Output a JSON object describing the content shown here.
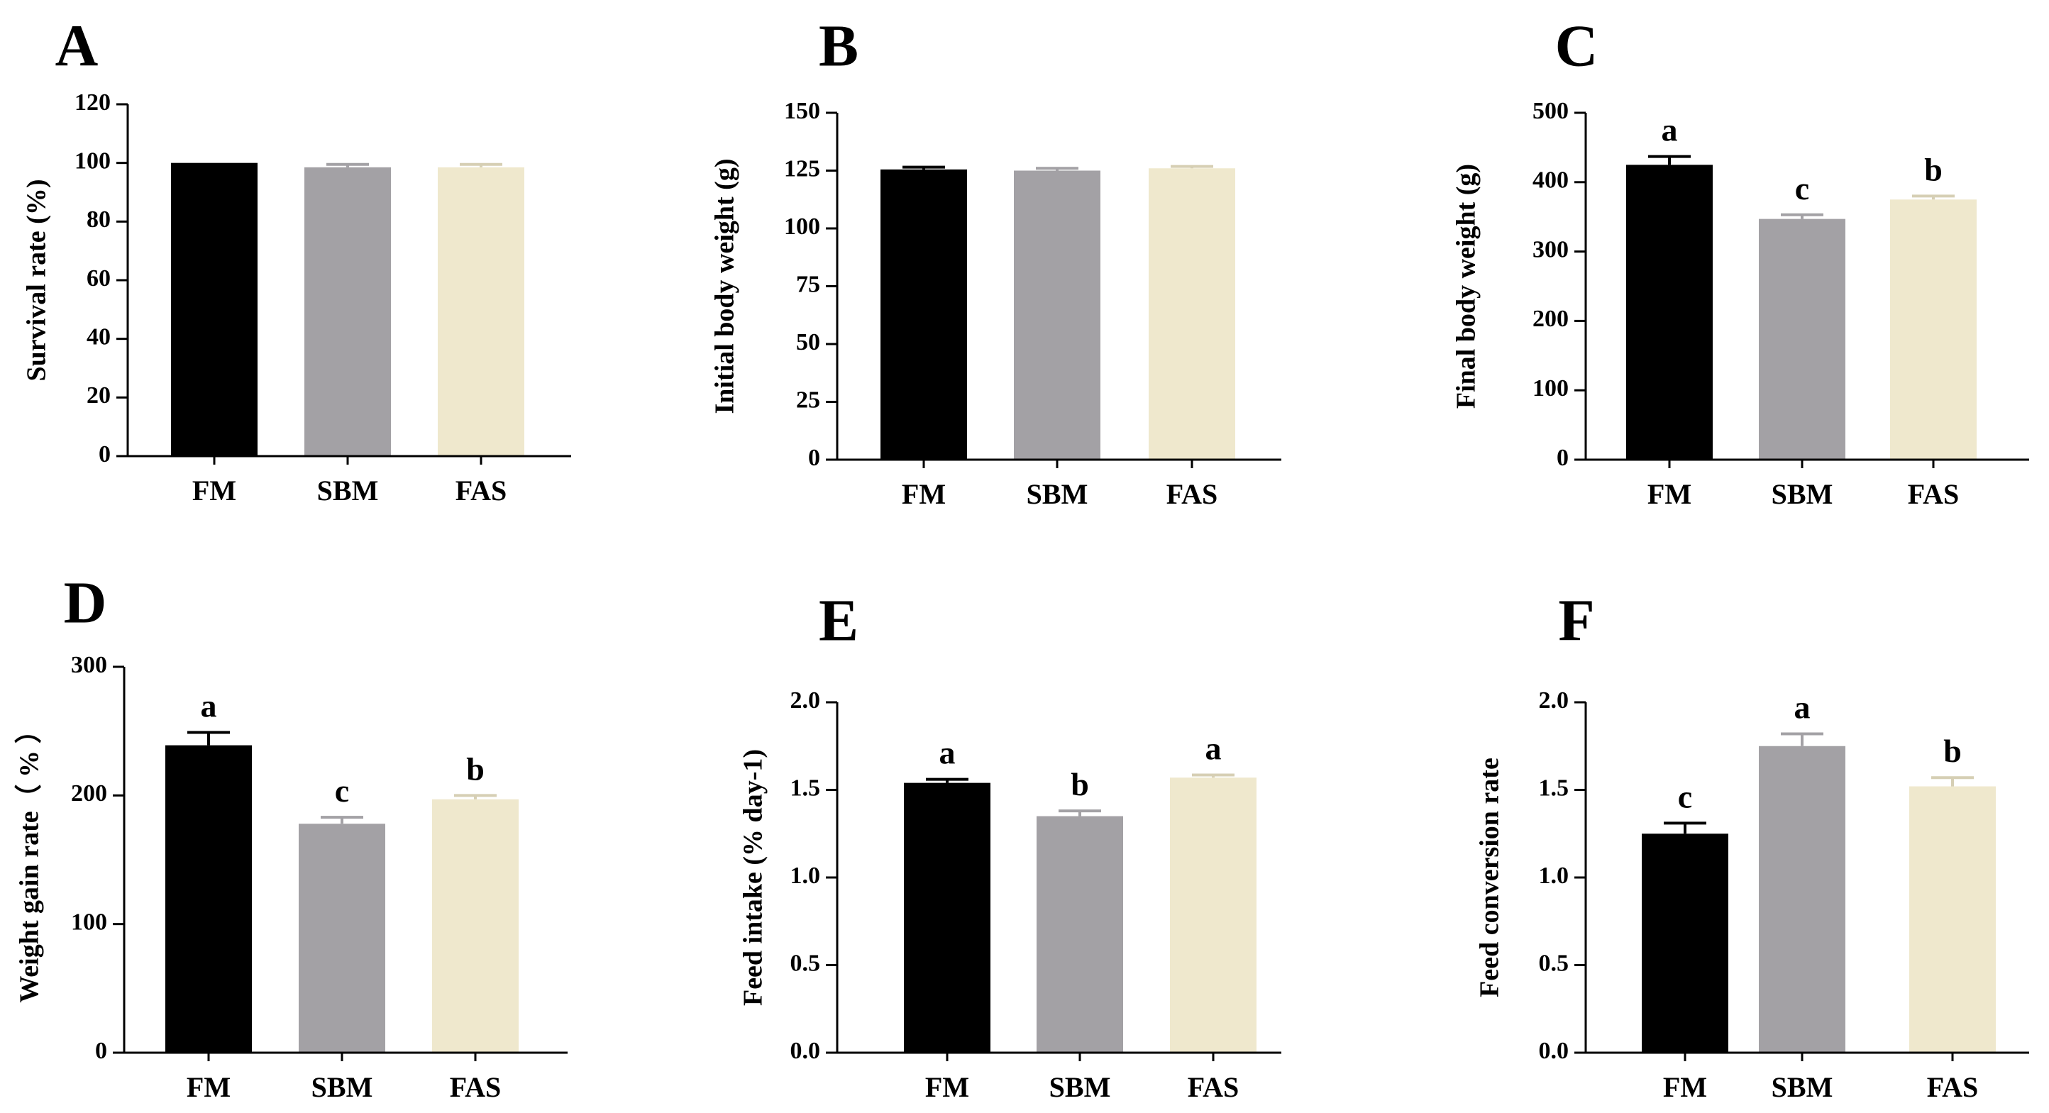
{
  "figure": {
    "colors": {
      "FM": "#000000",
      "SBM": "#a3a1a5",
      "FAS": "#efe8cd",
      "error_FM": "#000000",
      "error_SBM": "#a3a1a5",
      "error_FAS": "#d6cfb4",
      "axis": "#000000"
    }
  },
  "chart_data": [
    {
      "panel": "A",
      "type": "bar",
      "categories": [
        "FM",
        "SBM",
        "FAS"
      ],
      "values": [
        100,
        98.5,
        98.5
      ],
      "errors": [
        0,
        1,
        1
      ],
      "significance": [
        "",
        "",
        ""
      ],
      "ylabel": "Survival rate (%)",
      "ylim": [
        0,
        120
      ],
      "yticks": [
        "0",
        "20",
        "40",
        "60",
        "80",
        "100",
        "120"
      ]
    },
    {
      "panel": "B",
      "type": "bar",
      "categories": [
        "FM",
        "SBM",
        "FAS"
      ],
      "values": [
        125.5,
        125,
        126
      ],
      "errors": [
        1,
        1,
        0.8
      ],
      "significance": [
        "",
        "",
        ""
      ],
      "ylabel": "Initial body weight (g)",
      "ylim": [
        0,
        150
      ],
      "yticks": [
        "0",
        "25",
        "50",
        "75",
        "100",
        "125",
        "150"
      ]
    },
    {
      "panel": "C",
      "type": "bar",
      "categories": [
        "FM",
        "SBM",
        "FAS"
      ],
      "values": [
        425,
        347,
        375
      ],
      "errors": [
        12,
        6,
        5
      ],
      "significance": [
        "a",
        "c",
        "b"
      ],
      "ylabel": "Final body weight (g)",
      "ylim": [
        0,
        500
      ],
      "yticks": [
        "0",
        "100",
        "200",
        "300",
        "400",
        "500"
      ]
    },
    {
      "panel": "D",
      "type": "bar",
      "categories": [
        "FM",
        "SBM",
        "FAS"
      ],
      "values": [
        239,
        178,
        197
      ],
      "errors": [
        10,
        5,
        3
      ],
      "significance": [
        "a",
        "c",
        "b"
      ],
      "ylabel": "Weight gain rate（ % ）",
      "ylim": [
        0,
        300
      ],
      "yticks": [
        "0",
        "100",
        "200",
        "300"
      ]
    },
    {
      "panel": "E",
      "type": "bar",
      "categories": [
        "FM",
        "SBM",
        "FAS"
      ],
      "values": [
        1.54,
        1.35,
        1.57
      ],
      "errors": [
        0.02,
        0.03,
        0.015
      ],
      "significance": [
        "a",
        "b",
        "a"
      ],
      "ylabel": "Feed intake (% day-1)",
      "ylim": [
        0,
        2.0
      ],
      "yticks": [
        "0.0",
        "0.5",
        "1.0",
        "1.5",
        "2.0"
      ]
    },
    {
      "panel": "F",
      "type": "bar",
      "categories": [
        "FM",
        "SBM",
        "FAS"
      ],
      "values": [
        1.25,
        1.75,
        1.52
      ],
      "errors": [
        0.06,
        0.07,
        0.05
      ],
      "significance": [
        "c",
        "a",
        "b"
      ],
      "ylabel": "Feed conversion rate",
      "ylim": [
        0,
        2.0
      ],
      "yticks": [
        "0.0",
        "0.5",
        "1.0",
        "1.5",
        "2.0"
      ]
    }
  ]
}
